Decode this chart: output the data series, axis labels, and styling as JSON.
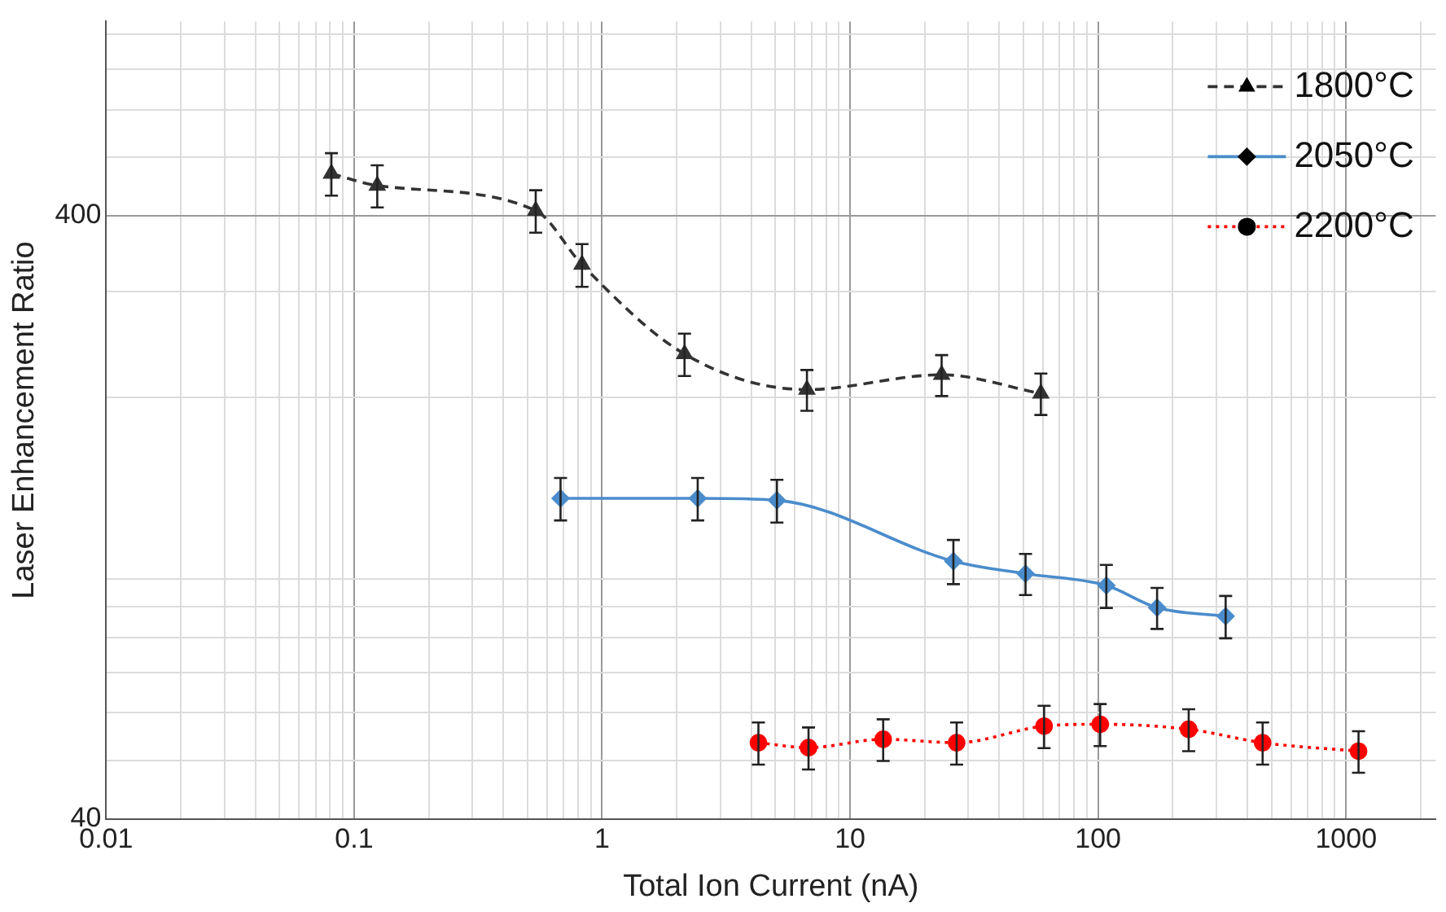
{
  "chart_data": {
    "type": "line",
    "xlabel": "Total Ion Current (nA)",
    "ylabel": "Laser Enhancement Ratio",
    "log": "xy",
    "grid": true,
    "legend": "top right",
    "xlim": [
      0.01,
      2300
    ],
    "ylim": [
      40,
      840
    ],
    "xticks": [
      0.01,
      {
        "value": 0.02,
        "label": null
      },
      {
        "value": 0.03,
        "label": null
      },
      {
        "value": 0.04,
        "label": null
      },
      {
        "value": 0.05,
        "label": null
      },
      {
        "value": 0.06,
        "label": null
      },
      {
        "value": 0.07,
        "label": null
      },
      {
        "value": 0.08,
        "label": null
      },
      {
        "value": 0.09,
        "label": null
      },
      0.1,
      {
        "value": 0.2,
        "label": null
      },
      {
        "value": 0.3,
        "label": null
      },
      {
        "value": 0.4,
        "label": null
      },
      {
        "value": 0.5,
        "label": null
      },
      {
        "value": 0.6,
        "label": null
      },
      {
        "value": 0.7,
        "label": null
      },
      {
        "value": 0.8,
        "label": null
      },
      {
        "value": 0.9,
        "label": null
      },
      1,
      {
        "value": 2,
        "label": null
      },
      {
        "value": 3,
        "label": null
      },
      {
        "value": 4,
        "label": null
      },
      {
        "value": 5,
        "label": null
      },
      {
        "value": 6,
        "label": null
      },
      {
        "value": 7,
        "label": null
      },
      {
        "value": 8,
        "label": null
      },
      {
        "value": 9,
        "label": null
      },
      10,
      {
        "value": 20,
        "label": null
      },
      {
        "value": 30,
        "label": null
      },
      {
        "value": 40,
        "label": null
      },
      {
        "value": 50,
        "label": null
      },
      {
        "value": 60,
        "label": null
      },
      {
        "value": 70,
        "label": null
      },
      {
        "value": 80,
        "label": null
      },
      {
        "value": 90,
        "label": null
      },
      100,
      {
        "value": 200,
        "label": null
      },
      {
        "value": 300,
        "label": null
      },
      {
        "value": 400,
        "label": null
      },
      {
        "value": 500,
        "label": null
      },
      {
        "value": 600,
        "label": null
      },
      {
        "value": 700,
        "label": null
      },
      {
        "value": 800,
        "label": null
      },
      {
        "value": 900,
        "label": null
      },
      1000,
      {
        "value": 2000,
        "label": null
      }
    ],
    "yticks": [
      40,
      {
        "value": 50,
        "label": null
      },
      {
        "value": 60,
        "label": null
      },
      {
        "value": 70,
        "label": null
      },
      {
        "value": 80,
        "label": null
      },
      {
        "value": 90,
        "label": null
      },
      {
        "value": 100,
        "label": null
      },
      {
        "value": 200,
        "label": null
      },
      {
        "value": 300,
        "label": null
      },
      400,
      {
        "value": 500,
        "label": null
      },
      {
        "value": 600,
        "label": null
      },
      {
        "value": 700,
        "label": null
      },
      {
        "value": 800,
        "label": null
      }
    ],
    "series": [
      {
        "name": "1800°C",
        "color": "#333333",
        "marker": "triangle",
        "line_style": "dashed",
        "x": [
          0.081,
          0.124,
          0.54,
          0.83,
          2.15,
          6.7,
          23.4,
          58.8
        ],
        "values": [
          470,
          449,
          408,
          332,
          236,
          206,
          218,
          203
        ],
        "errors": [
          38,
          36,
          33,
          27,
          19,
          16,
          17,
          16
        ]
      },
      {
        "name": "2050°C",
        "color": "#4a8ccc",
        "marker": "diamond",
        "line_style": "solid",
        "x": [
          0.68,
          2.43,
          5.07,
          26.1,
          51,
          108,
          173,
          327
        ],
        "values": [
          136,
          136,
          135,
          107,
          102,
          97.5,
          89.6,
          86.7
        ],
        "errors": [
          11,
          11,
          11,
          9,
          8,
          8,
          7,
          7
        ]
      },
      {
        "name": "2200°C",
        "color": "#ff0000",
        "marker": "circle",
        "line_style": "dotted",
        "x": [
          4.27,
          6.8,
          13.6,
          26.9,
          60.6,
          102,
          232,
          461,
          1123
        ],
        "values": [
          53.5,
          52.5,
          54.2,
          53.5,
          57,
          57.4,
          56.3,
          53.5,
          51.8
        ],
        "errors": [
          4.3,
          4.2,
          4.3,
          4.3,
          4.6,
          4.6,
          4.5,
          4.3,
          4.1
        ]
      }
    ]
  }
}
